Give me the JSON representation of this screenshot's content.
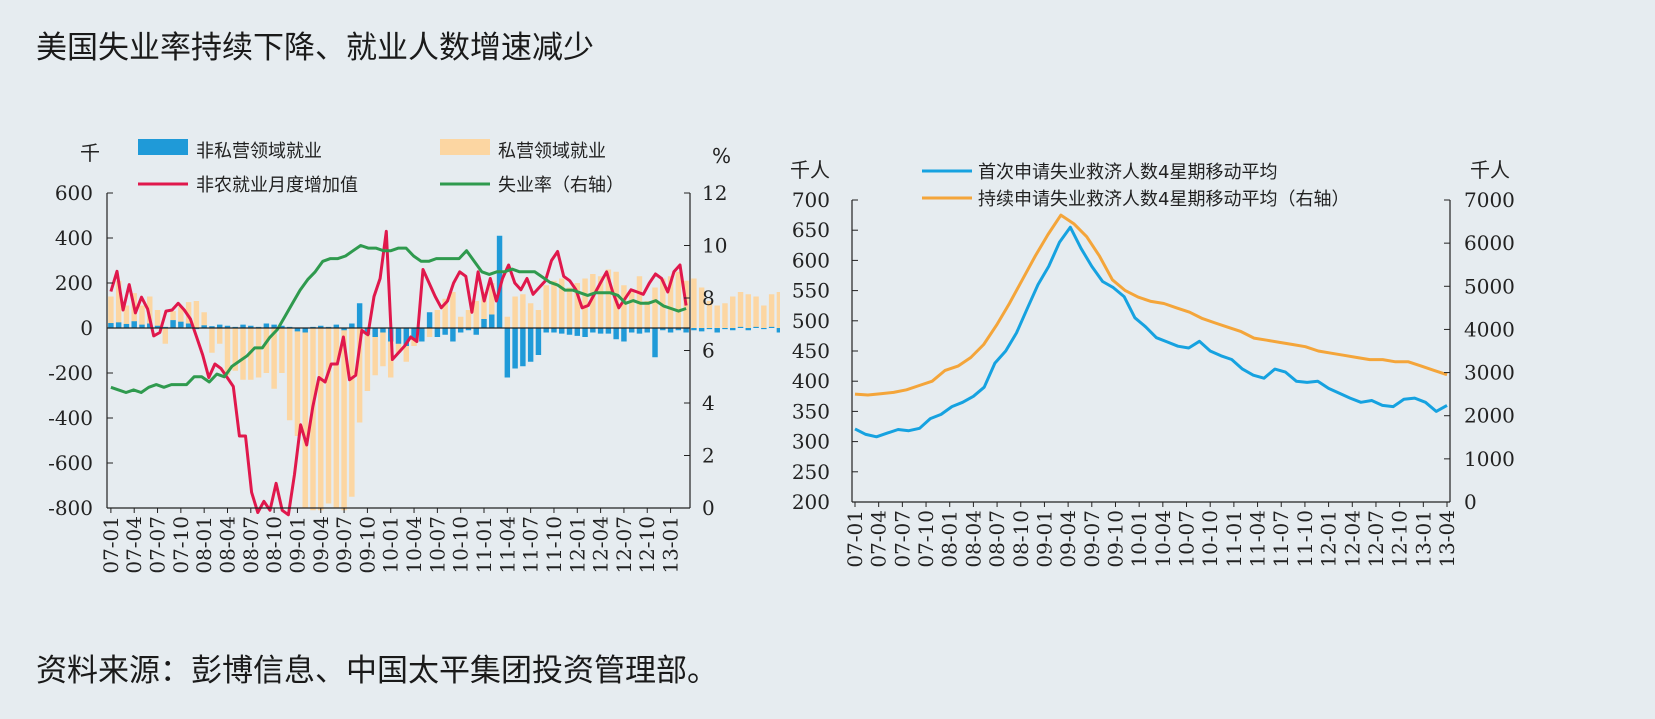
{
  "title": "美国失业率持续下降、就业人数增速减少",
  "source": "资料来源：彭博信息、中国太平集团投资管理部。",
  "colors": {
    "public_bar": "#1f9ad8",
    "private_bar": "#fcd6a2",
    "payroll_line": "#e0184c",
    "unemployment_line": "#2f9a4e",
    "initial_claims_line": "#16a2e0",
    "continuing_claims_line": "#f4a53a"
  },
  "chart_data": [
    {
      "type": "bar",
      "left_unit": "千",
      "right_unit": "%",
      "ylim": [
        -800,
        600
      ],
      "yticks": [
        -800,
        -600,
        -400,
        -200,
        0,
        200,
        400,
        600
      ],
      "y2lim": [
        0,
        12
      ],
      "y2ticks": [
        0,
        2,
        4,
        6,
        8,
        10,
        12
      ],
      "x_start": "2007-01",
      "xticks": [
        "07-01",
        "07-04",
        "07-07",
        "07-10",
        "08-01",
        "08-04",
        "08-07",
        "08-10",
        "09-01",
        "09-04",
        "09-07",
        "09-10",
        "10-01",
        "10-04",
        "10-07",
        "10-10",
        "11-01",
        "11-04",
        "11-07",
        "11-10",
        "12-01",
        "12-04",
        "12-07",
        "12-10",
        "13-01"
      ],
      "legend": [
        "非私营领域就业",
        "私营领域就业",
        "非农就业月度增加值",
        "失业率（右轴）"
      ],
      "series": [
        {
          "name": "非私营领域就业",
          "kind": "bar",
          "values": [
            22,
            25,
            18,
            30,
            15,
            20,
            10,
            5,
            35,
            28,
            20,
            -5,
            12,
            8,
            15,
            10,
            5,
            15,
            10,
            5,
            20,
            15,
            10,
            5,
            -15,
            -20,
            5,
            10,
            5,
            15,
            -10,
            20,
            110,
            -30,
            -40,
            -20,
            -60,
            -70,
            -80,
            -50,
            -60,
            70,
            -40,
            -30,
            -60,
            -20,
            -10,
            -30,
            40,
            60,
            410,
            -220,
            -180,
            -170,
            -150,
            -120,
            -20,
            -20,
            -25,
            -30,
            -35,
            -40,
            -20,
            -25,
            -25,
            -50,
            -60,
            -20,
            -25,
            -20,
            -130,
            -10,
            -20,
            -10,
            -20,
            -10,
            -15,
            -5,
            -20,
            -5,
            -10,
            5,
            -10,
            5,
            -5,
            5,
            -20,
            5,
            -25,
            -15,
            -5,
            -10,
            -5,
            -60,
            -5,
            -10,
            -15,
            -10,
            -20
          ]
        },
        {
          "name": "私营领域就业",
          "kind": "bar",
          "values": [
            140,
            210,
            100,
            155,
            100,
            140,
            80,
            -70,
            75,
            95,
            115,
            120,
            70,
            -110,
            -70,
            -210,
            -190,
            -230,
            -230,
            -220,
            -200,
            -270,
            -200,
            -410,
            -480,
            -800,
            -810,
            -810,
            -780,
            -800,
            -810,
            -750,
            -420,
            -280,
            -210,
            -170,
            -220,
            -110,
            -150,
            -80,
            -20,
            -40,
            80,
            130,
            160,
            50,
            80,
            120,
            160,
            200,
            240,
            50,
            140,
            150,
            110,
            80,
            190,
            210,
            220,
            180,
            200,
            220,
            240,
            230,
            260,
            250,
            190,
            160,
            230,
            120,
            180,
            220,
            230,
            250,
            210,
            220,
            180,
            120,
            100,
            110,
            140,
            160,
            150,
            140,
            100,
            150,
            160,
            170,
            120,
            130,
            140,
            170,
            200,
            170,
            160,
            190,
            230,
            200
          ]
        },
        {
          "name": "非农就业月度增加值",
          "kind": "line",
          "values": [
            162,
            252,
            80,
            193,
            67,
            137,
            85,
            -35,
            -20,
            75,
            80,
            110,
            80,
            40,
            -40,
            -120,
            -220,
            -160,
            -180,
            -220,
            -260,
            -480,
            -480,
            -730,
            -820,
            -770,
            -810,
            -690,
            -810,
            -830,
            -650,
            -430,
            -520,
            -350,
            -220,
            -240,
            -160,
            -160,
            -40,
            -230,
            -210,
            -10,
            -30,
            140,
            220,
            430,
            -140,
            -110,
            -80,
            -40,
            -60,
            260,
            200,
            140,
            90,
            120,
            200,
            250,
            230,
            70,
            250,
            120,
            220,
            120,
            220,
            280,
            200,
            170,
            220,
            150,
            180,
            210,
            300,
            340,
            230,
            210,
            170,
            90,
            100,
            150,
            200,
            250,
            160,
            90,
            130,
            170,
            160,
            150,
            200,
            240,
            220,
            160,
            250,
            280,
            100
          ]
        },
        {
          "name": "失业率（右轴）",
          "kind": "line",
          "axis": "right",
          "values": [
            4.6,
            4.5,
            4.4,
            4.5,
            4.4,
            4.6,
            4.7,
            4.6,
            4.7,
            4.7,
            4.7,
            5.0,
            5.0,
            4.8,
            5.1,
            5.0,
            5.4,
            5.6,
            5.8,
            6.1,
            6.1,
            6.5,
            6.8,
            7.3,
            7.8,
            8.3,
            8.7,
            9.0,
            9.4,
            9.5,
            9.5,
            9.6,
            9.8,
            10.0,
            9.9,
            9.9,
            9.8,
            9.8,
            9.9,
            9.9,
            9.6,
            9.4,
            9.4,
            9.5,
            9.5,
            9.5,
            9.5,
            9.8,
            9.4,
            9.0,
            8.9,
            9.0,
            9.0,
            9.1,
            9.0,
            9.0,
            9.0,
            8.8,
            8.6,
            8.5,
            8.3,
            8.3,
            8.2,
            8.1,
            8.2,
            8.2,
            8.2,
            8.1,
            7.8,
            7.9,
            7.8,
            7.8,
            7.9,
            7.7,
            7.6,
            7.5,
            7.6
          ]
        }
      ]
    },
    {
      "type": "line",
      "left_unit": "千人",
      "right_unit": "千人",
      "ylim": [
        200,
        700
      ],
      "yticks": [
        200,
        250,
        300,
        350,
        400,
        450,
        500,
        550,
        600,
        650,
        700
      ],
      "y2lim": [
        0,
        7000
      ],
      "y2ticks": [
        0,
        1000,
        2000,
        3000,
        4000,
        5000,
        6000,
        7000
      ],
      "x_start": "2007-01",
      "xticks": [
        "07-01",
        "07-04",
        "07-07",
        "07-10",
        "08-01",
        "08-04",
        "08-07",
        "08-10",
        "09-01",
        "09-04",
        "09-07",
        "09-10",
        "10-01",
        "10-04",
        "10-07",
        "10-10",
        "11-01",
        "11-04",
        "11-07",
        "11-10",
        "12-01",
        "12-04",
        "12-07",
        "12-10",
        "13-01",
        "13-04"
      ],
      "legend": [
        "首次申请失业救济人数4星期移动平均",
        "持续申请失业救济人数4星期移动平均（右轴）"
      ],
      "series": [
        {
          "name": "首次申请失业救济人数4星期移动平均",
          "kind": "line",
          "values": [
            321,
            312,
            308,
            314,
            320,
            318,
            322,
            338,
            345,
            358,
            365,
            375,
            390,
            430,
            450,
            480,
            520,
            560,
            590,
            630,
            655,
            620,
            590,
            565,
            555,
            540,
            505,
            490,
            472,
            465,
            458,
            455,
            466,
            450,
            442,
            436,
            420,
            410,
            405,
            420,
            415,
            400,
            398,
            400,
            388,
            380,
            372,
            365,
            368,
            360,
            358,
            370,
            372,
            365,
            350,
            360
          ]
        },
        {
          "name": "持续申请失业救济人数4星期移动平均（右轴）",
          "kind": "line",
          "axis": "right",
          "values": [
            2500,
            2480,
            2510,
            2540,
            2600,
            2700,
            2800,
            3050,
            3150,
            3350,
            3650,
            4100,
            4600,
            5150,
            5700,
            6200,
            6650,
            6450,
            6150,
            5700,
            5150,
            4900,
            4750,
            4650,
            4600,
            4500,
            4400,
            4250,
            4150,
            4050,
            3950,
            3800,
            3750,
            3700,
            3650,
            3600,
            3500,
            3450,
            3400,
            3350,
            3300,
            3300,
            3250,
            3250,
            3150,
            3050,
            2950
          ]
        }
      ]
    }
  ]
}
